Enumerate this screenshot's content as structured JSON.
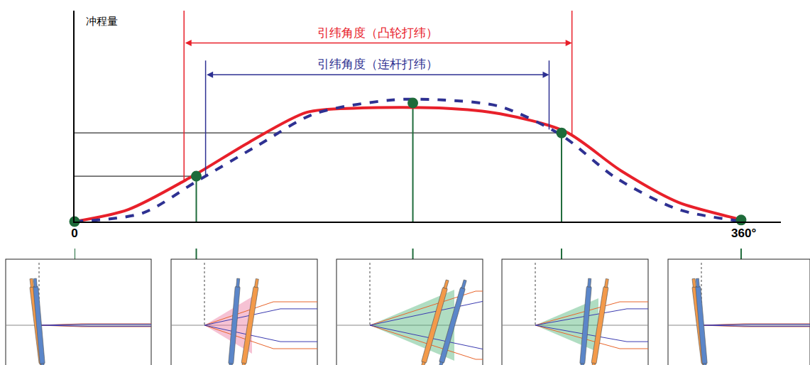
{
  "chart_data": {
    "type": "line",
    "ylabel": "冲程量",
    "xlim": [
      0,
      380
    ],
    "xticks": [
      {
        "value": 0,
        "label": "0"
      },
      {
        "value": 360,
        "label": "360°"
      }
    ],
    "ylim": [
      0,
      137
    ],
    "yticks": [],
    "tick_labels": "x",
    "grid": false,
    "series": [
      {
        "color": "#e8202a",
        "line_style": "solid",
        "x": [
          0,
          28.9,
          63.5,
          94,
          125,
          152,
          198,
          229,
          264,
          294,
          325,
          358.6,
          360
        ],
        "values": [
          0,
          7.8,
          29.5,
          51.6,
          71,
          73.7,
          73.7,
          70,
          58.5,
          33,
          12.4,
          1,
          0
        ]
      },
      {
        "color": "#2e3192",
        "line_style": "dashed",
        "x": [
          0,
          36.6,
          65.5,
          98,
          129,
          171,
          198,
          229,
          262,
          291,
          325,
          360
        ],
        "values": [
          0,
          5.5,
          26,
          49,
          70,
          79,
          79,
          74.7,
          56,
          28.6,
          7.8,
          0
        ]
      },
      {
        "type": "scatter",
        "marker": "circle",
        "color": "#1e6b3a",
        "x": [
          0,
          65.5,
          182,
          262,
          358.6
        ],
        "values": [
          0,
          29.5,
          77,
          57.6,
          1
        ]
      }
    ],
    "spans": [
      {
        "label": "引纬角度（凸轮打纬）",
        "from": 58.9,
        "to": 267.6,
        "y": 116,
        "top": 137,
        "color": "#e8202a"
      },
      {
        "label": "引纬角度（连杆打纬）",
        "from": 70.5,
        "to": 255.3,
        "y": 95.4,
        "top": 104.6,
        "color": "#2e3192"
      }
    ],
    "reference_lines": [
      {
        "x0": 0,
        "x1": 65.5,
        "y0": 29.5,
        "y1": 29.5,
        "color": "#333333"
      },
      {
        "x0": 0,
        "x1": 262,
        "y0": 57.6,
        "y1": 57.6,
        "color": "#333333"
      },
      {
        "x0": 0,
        "x1": 0,
        "y0": 0,
        "y1": 0,
        "color": "#1e6b3a"
      },
      {
        "x0": 65.5,
        "x1": 65.5,
        "y0": 0,
        "y1": 29.5,
        "color": "#1e6b3a"
      },
      {
        "x0": 182,
        "x1": 182,
        "y0": 0,
        "y1": 77,
        "color": "#1e6b3a"
      },
      {
        "x0": 262,
        "x1": 262,
        "y0": 0,
        "y1": 57.6,
        "color": "#1e6b3a"
      },
      {
        "x0": 358.6,
        "x1": 358.6,
        "y0": 0,
        "y1": 1,
        "color": "#1e6b3a"
      }
    ]
  }
}
